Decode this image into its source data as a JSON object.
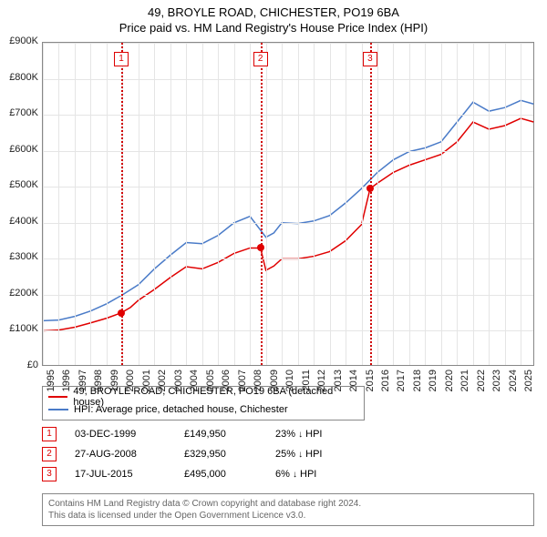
{
  "title": "49, BROYLE ROAD, CHICHESTER, PO19 6BA",
  "subtitle": "Price paid vs. HM Land Registry's House Price Index (HPI)",
  "chart": {
    "type": "line",
    "background_color": "#ffffff",
    "grid_color": "#e5e5e5",
    "axis_color": "#888888",
    "xlim": [
      1995,
      2025.9
    ],
    "ylim": [
      0,
      900000
    ],
    "ytick_step": 100000,
    "y_ticks": [
      "£0",
      "£100K",
      "£200K",
      "£300K",
      "£400K",
      "£500K",
      "£600K",
      "£700K",
      "£800K",
      "£900K"
    ],
    "x_ticks": [
      "1995",
      "1996",
      "1997",
      "1998",
      "1999",
      "2000",
      "2001",
      "2002",
      "2003",
      "2004",
      "2005",
      "2006",
      "2007",
      "2008",
      "2009",
      "2010",
      "2011",
      "2012",
      "2013",
      "2014",
      "2015",
      "2016",
      "2017",
      "2018",
      "2019",
      "2020",
      "2021",
      "2022",
      "2023",
      "2024",
      "2025"
    ],
    "label_fontsize": 11,
    "series": [
      {
        "name": "property",
        "label": "49, BROYLE ROAD, CHICHESTER, PO19 6BA (detached house)",
        "color": "#e00000",
        "line_width": 1.5,
        "data": [
          [
            1995,
            100000
          ],
          [
            1996,
            102000
          ],
          [
            1997,
            110000
          ],
          [
            1998,
            122000
          ],
          [
            1999,
            135000
          ],
          [
            1999.92,
            149950
          ],
          [
            2000.5,
            165000
          ],
          [
            2001,
            185000
          ],
          [
            2002,
            215000
          ],
          [
            2003,
            248000
          ],
          [
            2004,
            278000
          ],
          [
            2005,
            272000
          ],
          [
            2006,
            290000
          ],
          [
            2007,
            315000
          ],
          [
            2008,
            330000
          ],
          [
            2008.66,
            329950
          ],
          [
            2009,
            268000
          ],
          [
            2009.5,
            280000
          ],
          [
            2010,
            300000
          ],
          [
            2011,
            300000
          ],
          [
            2012,
            307000
          ],
          [
            2013,
            320000
          ],
          [
            2014,
            350000
          ],
          [
            2015,
            395000
          ],
          [
            2015.54,
            495000
          ],
          [
            2016,
            510000
          ],
          [
            2017,
            540000
          ],
          [
            2018,
            560000
          ],
          [
            2019,
            575000
          ],
          [
            2020,
            590000
          ],
          [
            2021,
            625000
          ],
          [
            2022,
            680000
          ],
          [
            2023,
            660000
          ],
          [
            2024,
            670000
          ],
          [
            2025,
            690000
          ],
          [
            2025.8,
            680000
          ]
        ]
      },
      {
        "name": "hpi",
        "label": "HPI: Average price, detached house, Chichester",
        "color": "#4a7bc8",
        "line_width": 1.5,
        "data": [
          [
            1995,
            128000
          ],
          [
            1996,
            130000
          ],
          [
            1997,
            140000
          ],
          [
            1998,
            155000
          ],
          [
            1999,
            175000
          ],
          [
            2000,
            200000
          ],
          [
            2001,
            228000
          ],
          [
            2002,
            272000
          ],
          [
            2003,
            310000
          ],
          [
            2004,
            345000
          ],
          [
            2005,
            342000
          ],
          [
            2006,
            365000
          ],
          [
            2007,
            400000
          ],
          [
            2008,
            418000
          ],
          [
            2009,
            360000
          ],
          [
            2009.5,
            372000
          ],
          [
            2010,
            400000
          ],
          [
            2011,
            398000
          ],
          [
            2012,
            405000
          ],
          [
            2013,
            420000
          ],
          [
            2014,
            455000
          ],
          [
            2015,
            495000
          ],
          [
            2016,
            540000
          ],
          [
            2017,
            575000
          ],
          [
            2018,
            598000
          ],
          [
            2019,
            608000
          ],
          [
            2020,
            625000
          ],
          [
            2021,
            680000
          ],
          [
            2022,
            735000
          ],
          [
            2023,
            710000
          ],
          [
            2024,
            720000
          ],
          [
            2025,
            740000
          ],
          [
            2025.8,
            730000
          ]
        ]
      }
    ],
    "markers": [
      {
        "id": "1",
        "x": 1999.92,
        "y": 149950,
        "line_color": "#d00000"
      },
      {
        "id": "2",
        "x": 2008.66,
        "y": 329950,
        "line_color": "#d00000"
      },
      {
        "id": "3",
        "x": 2015.54,
        "y": 495000,
        "line_color": "#d00000"
      }
    ]
  },
  "legend": {
    "items": [
      {
        "label": "49, BROYLE ROAD, CHICHESTER, PO19 6BA (detached house)",
        "color": "#e00000"
      },
      {
        "label": "HPI: Average price, detached house, Chichester",
        "color": "#4a7bc8"
      }
    ]
  },
  "sales": [
    {
      "id": "1",
      "date": "03-DEC-1999",
      "price": "£149,950",
      "diff": "23%",
      "dir": "↓",
      "suffix": "HPI"
    },
    {
      "id": "2",
      "date": "27-AUG-2008",
      "price": "£329,950",
      "diff": "25%",
      "dir": "↓",
      "suffix": "HPI"
    },
    {
      "id": "3",
      "date": "17-JUL-2015",
      "price": "£495,000",
      "diff": "6%",
      "dir": "↓",
      "suffix": "HPI"
    }
  ],
  "footer": {
    "line1": "Contains HM Land Registry data © Crown copyright and database right 2024.",
    "line2": "This data is licensed under the Open Government Licence v3.0."
  }
}
